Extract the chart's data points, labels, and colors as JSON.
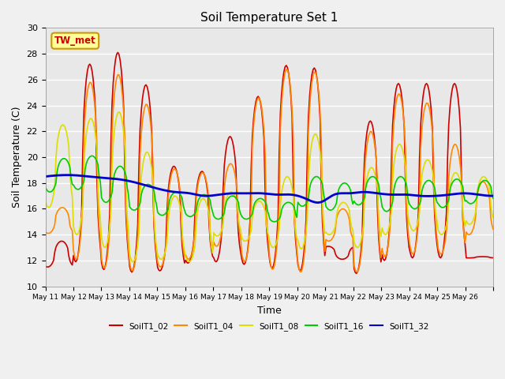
{
  "title": "Soil Temperature Set 1",
  "xlabel": "Time",
  "ylabel": "Soil Temperature (C)",
  "ylim": [
    10,
    30
  ],
  "annotation": "TW_met",
  "plot_bg_color": "#e8e8e8",
  "fig_bg_color": "#f0f0f0",
  "series": {
    "SoilT1_02": {
      "color": "#cc0000",
      "lw": 1.2
    },
    "SoilT1_04": {
      "color": "#ff8800",
      "lw": 1.2
    },
    "SoilT1_08": {
      "color": "#dddd00",
      "lw": 1.2
    },
    "SoilT1_16": {
      "color": "#00cc00",
      "lw": 1.2
    },
    "SoilT1_32": {
      "color": "#0000cc",
      "lw": 2.0
    }
  },
  "xtick_labels": [
    "May 11",
    "May 12",
    "May 13",
    "May 14",
    "May 15",
    "May 16",
    "May 17",
    "May 18",
    "May 19",
    "May 20",
    "May 21",
    "May 22",
    "May 23",
    "May 24",
    "May 25",
    "May 26"
  ],
  "ytick_values": [
    10,
    12,
    14,
    16,
    18,
    20,
    22,
    24,
    26,
    28,
    30
  ],
  "peak_heights_02": [
    13.5,
    27.2,
    28.1,
    25.6,
    19.3,
    18.9,
    21.6,
    24.7,
    27.1,
    26.9,
    12.1,
    22.8,
    25.7,
    25.7,
    25.7,
    12.3
  ],
  "trough_02": [
    11.5,
    11.9,
    11.3,
    11.1,
    11.2,
    11.8,
    11.9,
    11.7,
    11.4,
    11.2,
    13.1,
    11.0,
    12.0,
    12.2,
    12.2,
    12.2
  ],
  "peak_heights_04": [
    16.1,
    25.8,
    26.4,
    24.1,
    19.1,
    18.8,
    19.5,
    24.6,
    26.8,
    26.6,
    16.0,
    22.0,
    24.9,
    24.2,
    21.0,
    18.1
  ],
  "trough_04": [
    14.1,
    12.1,
    11.4,
    11.2,
    11.5,
    12.1,
    13.1,
    11.9,
    11.3,
    11.1,
    13.5,
    11.1,
    12.3,
    12.5,
    12.5,
    14.0
  ],
  "peak_heights_08": [
    22.5,
    23.0,
    23.5,
    20.4,
    17.0,
    16.8,
    17.3,
    16.6,
    18.5,
    21.8,
    16.5,
    19.2,
    21.0,
    19.8,
    18.8,
    18.5
  ],
  "trough_08": [
    16.1,
    14.0,
    13.0,
    11.9,
    12.1,
    11.9,
    13.9,
    13.5,
    13.0,
    12.9,
    14.0,
    13.0,
    14.0,
    14.3,
    14.0,
    14.8
  ],
  "peak_heights_16": [
    19.9,
    20.1,
    19.3,
    17.9,
    17.3,
    17.1,
    17.0,
    16.8,
    16.5,
    18.5,
    18.0,
    18.5,
    18.5,
    18.2,
    18.3,
    18.2
  ],
  "trough_16": [
    17.3,
    17.5,
    16.5,
    15.9,
    15.5,
    15.4,
    15.2,
    15.2,
    15.0,
    16.2,
    15.9,
    16.3,
    15.8,
    16.0,
    16.1,
    16.4
  ],
  "blue_values": [
    18.5,
    18.6,
    18.6,
    18.5,
    18.4,
    18.3,
    18.1,
    17.8,
    17.5,
    17.3,
    17.2,
    17.0,
    17.1,
    17.2,
    17.2,
    17.2,
    17.1,
    17.1,
    16.8,
    16.5,
    17.1,
    17.2,
    17.3,
    17.2,
    17.1,
    17.1,
    17.0,
    17.0,
    17.1,
    17.2,
    17.1,
    17.0
  ]
}
